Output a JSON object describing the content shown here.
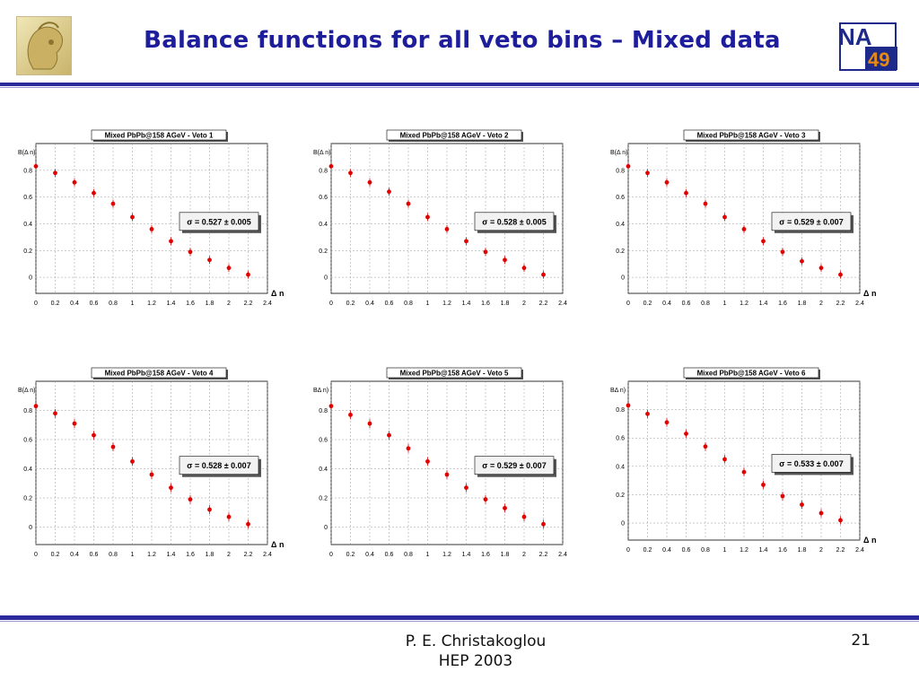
{
  "slide": {
    "title": "Balance functions for all veto bins – Mixed data",
    "footer_line1": "P. E. Christakoglou",
    "footer_line2": "HEP 2003",
    "page_number": "21",
    "logo_right_top": "NA",
    "logo_right_bottom": "49"
  },
  "colors": {
    "title": "#1e1e9c",
    "rule": "#2a2a9a",
    "points": "#e00000",
    "logo_orange": "#e58a12"
  },
  "chart_data": [
    {
      "type": "scatter",
      "title": "Mixed PbPb@158 AGeV - Veto 1",
      "ylabel": "B(Δ n)",
      "xlabel": "Δ n",
      "xlim": [
        0,
        2.4
      ],
      "ylim": [
        -0.12,
        1.0
      ],
      "xticks": [
        "0",
        "0.2",
        "0.4",
        "0.6",
        "0.8",
        "1",
        "1.2",
        "1.4",
        "1.6",
        "1.8",
        "2",
        "2.2",
        "2.4"
      ],
      "yticks": [
        "0",
        "0.2",
        "0.4",
        "0.6",
        "0.8"
      ],
      "stat_text": "σ = 0.527 ± 0.005",
      "x": [
        0.0,
        0.2,
        0.4,
        0.6,
        0.8,
        1.0,
        1.2,
        1.4,
        1.6,
        1.8,
        2.0,
        2.2
      ],
      "y": [
        0.83,
        0.78,
        0.71,
        0.63,
        0.55,
        0.45,
        0.36,
        0.27,
        0.19,
        0.13,
        0.07,
        0.02
      ],
      "yerr": [
        0.02,
        0.03,
        0.03,
        0.03,
        0.03,
        0.03,
        0.03,
        0.03,
        0.03,
        0.03,
        0.03,
        0.03
      ]
    },
    {
      "type": "scatter",
      "title": "Mixed PbPb@158 AGeV - Veto 2",
      "ylabel": "B(Δ n)",
      "xlabel": "",
      "xlim": [
        0,
        2.4
      ],
      "ylim": [
        -0.12,
        1.0
      ],
      "xticks": [
        "0",
        "0.2",
        "0.4",
        "0.6",
        "0.8",
        "1",
        "1.2",
        "1.4",
        "1.6",
        "1.8",
        "2",
        "2.2",
        "2.4"
      ],
      "yticks": [
        "0",
        "0.2",
        "0.4",
        "0.6",
        "0.8"
      ],
      "stat_text": "σ = 0.528 ± 0.005",
      "x": [
        0.0,
        0.2,
        0.4,
        0.6,
        0.8,
        1.0,
        1.2,
        1.4,
        1.6,
        1.8,
        2.0,
        2.2
      ],
      "y": [
        0.83,
        0.78,
        0.71,
        0.64,
        0.55,
        0.45,
        0.36,
        0.27,
        0.19,
        0.13,
        0.07,
        0.02
      ],
      "yerr": [
        0.02,
        0.03,
        0.03,
        0.03,
        0.03,
        0.03,
        0.03,
        0.03,
        0.03,
        0.03,
        0.03,
        0.03
      ]
    },
    {
      "type": "scatter",
      "title": "Mixed PbPb@158 AGeV - Veto 3",
      "ylabel": "B(Δ n)",
      "xlabel": "Δ n",
      "xlim": [
        0,
        2.4
      ],
      "ylim": [
        -0.12,
        1.0
      ],
      "xticks": [
        "0",
        "0.2",
        "0.4",
        "0.6",
        "0.8",
        "1",
        "1.2",
        "1.4",
        "1.6",
        "1.8",
        "2",
        "2.2",
        "2.4"
      ],
      "yticks": [
        "0",
        "0.2",
        "0.4",
        "0.6",
        "0.8"
      ],
      "stat_text": "σ = 0.529 ± 0.007",
      "x": [
        0.0,
        0.2,
        0.4,
        0.6,
        0.8,
        1.0,
        1.2,
        1.4,
        1.6,
        1.8,
        2.0,
        2.2
      ],
      "y": [
        0.83,
        0.78,
        0.71,
        0.63,
        0.55,
        0.45,
        0.36,
        0.27,
        0.19,
        0.12,
        0.07,
        0.02
      ],
      "yerr": [
        0.02,
        0.03,
        0.03,
        0.03,
        0.03,
        0.03,
        0.03,
        0.03,
        0.03,
        0.03,
        0.03,
        0.03
      ]
    },
    {
      "type": "scatter",
      "title": "Mixed PbPb@158 AGeV - Veto 4",
      "ylabel": "B(Δ n)",
      "xlabel": "Δ n",
      "xlim": [
        0,
        2.4
      ],
      "ylim": [
        -0.12,
        1.0
      ],
      "xticks": [
        "0",
        "0.2",
        "0.4",
        "0.6",
        "0.8",
        "1",
        "1.2",
        "1.4",
        "1.6",
        "1.8",
        "2",
        "2.2",
        "2.4"
      ],
      "yticks": [
        "0",
        "0.2",
        "0.4",
        "0.6",
        "0.8"
      ],
      "stat_text": "σ = 0.528 ± 0.007",
      "x": [
        0.0,
        0.2,
        0.4,
        0.6,
        0.8,
        1.0,
        1.2,
        1.4,
        1.6,
        1.8,
        2.0,
        2.2
      ],
      "y": [
        0.83,
        0.78,
        0.71,
        0.63,
        0.55,
        0.45,
        0.36,
        0.27,
        0.19,
        0.12,
        0.07,
        0.02
      ],
      "yerr": [
        0.02,
        0.03,
        0.03,
        0.03,
        0.03,
        0.03,
        0.03,
        0.03,
        0.03,
        0.03,
        0.03,
        0.03
      ]
    },
    {
      "type": "scatter",
      "title": "Mixed PbPb@158 AGeV - Veto 5",
      "ylabel": "BΔ n)",
      "xlabel": "",
      "xlim": [
        0,
        2.4
      ],
      "ylim": [
        -0.12,
        1.0
      ],
      "xticks": [
        "0",
        "0.2",
        "0.4",
        "0.6",
        "0.8",
        "1",
        "1.2",
        "1.4",
        "1.6",
        "1.8",
        "2",
        "2.2",
        "2.4"
      ],
      "yticks": [
        "0",
        "0.2",
        "0.4",
        "0.6",
        "0.8"
      ],
      "stat_text": "σ = 0.529 ± 0.007",
      "x": [
        0.0,
        0.2,
        0.4,
        0.6,
        0.8,
        1.0,
        1.2,
        1.4,
        1.6,
        1.8,
        2.0,
        2.2
      ],
      "y": [
        0.83,
        0.77,
        0.71,
        0.63,
        0.54,
        0.45,
        0.36,
        0.27,
        0.19,
        0.13,
        0.07,
        0.02
      ],
      "yerr": [
        0.02,
        0.03,
        0.03,
        0.03,
        0.03,
        0.03,
        0.03,
        0.03,
        0.03,
        0.03,
        0.03,
        0.03
      ]
    },
    {
      "type": "scatter",
      "title": "Mixed PbPb@158 AGeV - Veto 6",
      "ylabel": "BΔ n)",
      "xlabel": "Δ n",
      "xlim": [
        0,
        2.4
      ],
      "ylim": [
        -0.12,
        1.0
      ],
      "xticks": [
        "0",
        "0.2",
        "0.4",
        "0.6",
        "0.8",
        "1",
        "1.2",
        "1.4",
        "1.6",
        "1.8",
        "2",
        "2.2",
        "2.4"
      ],
      "yticks": [
        "0",
        "0.2",
        "0.4",
        "0.6",
        "0.8"
      ],
      "stat_text": "σ = 0.533 ± 0.007",
      "x": [
        0.0,
        0.2,
        0.4,
        0.6,
        0.8,
        1.0,
        1.2,
        1.4,
        1.6,
        1.8,
        2.0,
        2.2
      ],
      "y": [
        0.83,
        0.77,
        0.71,
        0.63,
        0.54,
        0.45,
        0.36,
        0.27,
        0.19,
        0.13,
        0.07,
        0.02
      ],
      "yerr": [
        0.02,
        0.03,
        0.03,
        0.03,
        0.03,
        0.03,
        0.03,
        0.03,
        0.03,
        0.03,
        0.03,
        0.03
      ]
    }
  ]
}
